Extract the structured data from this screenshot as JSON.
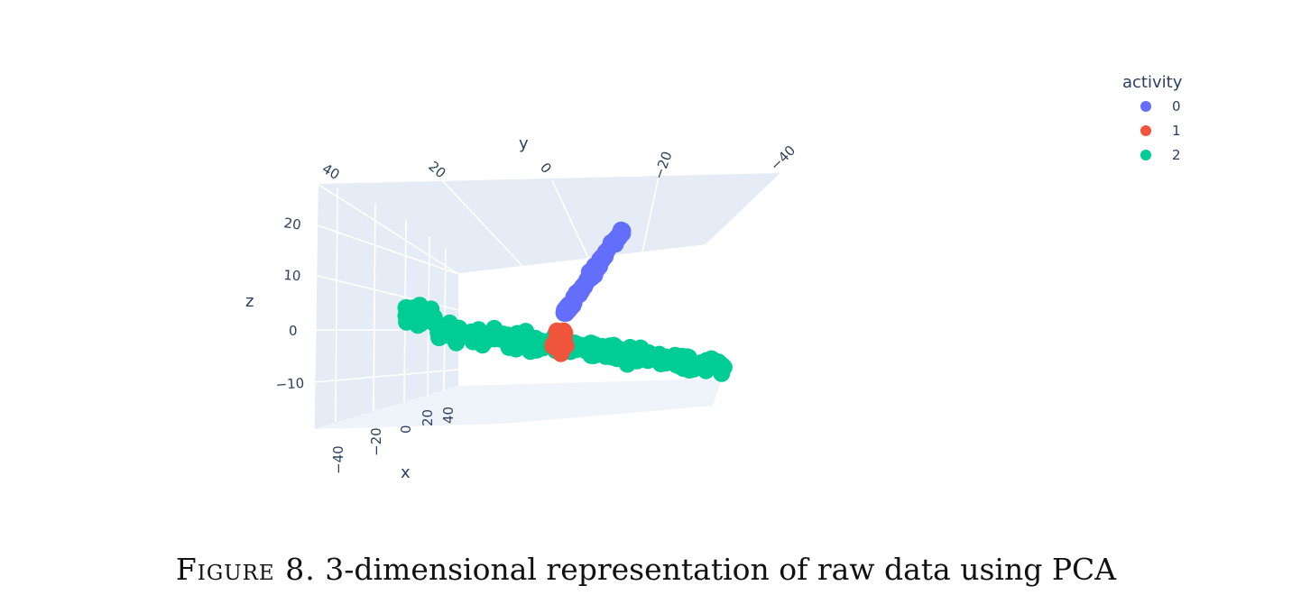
{
  "caption": {
    "label": "Figure 8.",
    "text": "3-dimensional representation of raw data using PCA"
  },
  "colors": {
    "pane": "#e5ecf6",
    "grid": "#ffffff",
    "text": "#2a3f5f",
    "series_0": "#636efa",
    "series_1": "#ef553b",
    "series_2": "#00cc96"
  },
  "chart_data": {
    "type": "scatter",
    "dimensions": 3,
    "axes": {
      "x": {
        "label": "x",
        "ticks": [
          "−40",
          "−20",
          "0",
          "20",
          "40"
        ]
      },
      "y": {
        "label": "y",
        "ticks": [
          "40",
          "20",
          "0",
          "−20",
          "−40"
        ]
      },
      "z": {
        "label": "z",
        "ticks": [
          "20",
          "10",
          "0",
          "−10"
        ]
      }
    },
    "legend": {
      "title": "activity",
      "position": "top-right",
      "entries": [
        "0",
        "1",
        "2"
      ]
    },
    "series": [
      {
        "name": "0"
      },
      {
        "name": "1"
      },
      {
        "name": "2"
      }
    ]
  }
}
